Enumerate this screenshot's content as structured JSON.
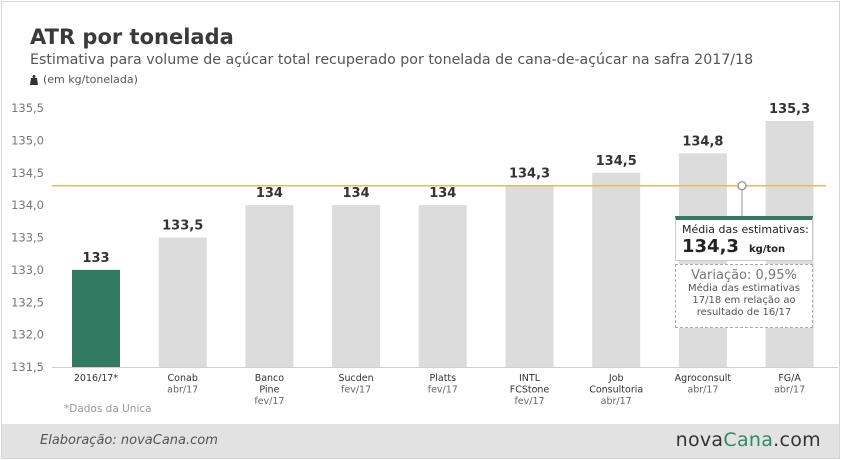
{
  "title": "ATR por tonelada",
  "subtitle": "Estimativa para volume de açúcar total recuperado por tonelada de cana-de-açúcar na safra 2017/18",
  "unit_note": "(em kg/tonelada)",
  "footnote": "*Dados da Unica",
  "credit": "Elaboração: novaCana.com",
  "logo": {
    "part1": "nova",
    "part2": "Cana",
    "part3": ".com"
  },
  "average_box": {
    "label": "Média das estimativas:",
    "value": "134,3",
    "unit": "kg/ton"
  },
  "variation_box": {
    "label": "Variação: 0,95%",
    "description": "Média das estimativas 17/18 em relação ao resultado de 16/17"
  },
  "colors": {
    "highlight_bar": "#337a63",
    "bar": "#dcdcdc",
    "average_line": "#f0b45a",
    "brand_green": "#2e8b63"
  },
  "chart_data": {
    "type": "bar",
    "ylim": [
      131.5,
      135.5
    ],
    "yticks": [
      "131,5",
      "132,0",
      "132,5",
      "133,0",
      "133,5",
      "134,0",
      "134,5",
      "135,0",
      "135,5"
    ],
    "ytick_values": [
      131.5,
      132.0,
      132.5,
      133.0,
      133.5,
      134.0,
      134.5,
      135.0,
      135.5
    ],
    "average_line": 134.3,
    "grid": false,
    "bars": [
      {
        "name": [
          "2016/17*"
        ],
        "date": "",
        "value": 133,
        "label": "133",
        "highlight": true
      },
      {
        "name": [
          "Conab"
        ],
        "date": "abr/17",
        "value": 133.5,
        "label": "133,5",
        "highlight": false
      },
      {
        "name": [
          "Banco",
          "Pine"
        ],
        "date": "fev/17",
        "value": 134,
        "label": "134",
        "highlight": false
      },
      {
        "name": [
          "Sucden"
        ],
        "date": "fev/17",
        "value": 134,
        "label": "134",
        "highlight": false
      },
      {
        "name": [
          "Platts"
        ],
        "date": "fev/17",
        "value": 134,
        "label": "134",
        "highlight": false
      },
      {
        "name": [
          "INTL",
          "FCStone"
        ],
        "date": "fev/17",
        "value": 134.3,
        "label": "134,3",
        "highlight": false
      },
      {
        "name": [
          "Job",
          "Consultoria"
        ],
        "date": "abr/17",
        "value": 134.5,
        "label": "134,5",
        "highlight": false
      },
      {
        "name": [
          "Agroconsult"
        ],
        "date": "abr/17",
        "value": 134.8,
        "label": "134,8",
        "highlight": false
      },
      {
        "name": [
          "FG/A"
        ],
        "date": "abr/17",
        "value": 135.3,
        "label": "135,3",
        "highlight": false
      }
    ]
  }
}
